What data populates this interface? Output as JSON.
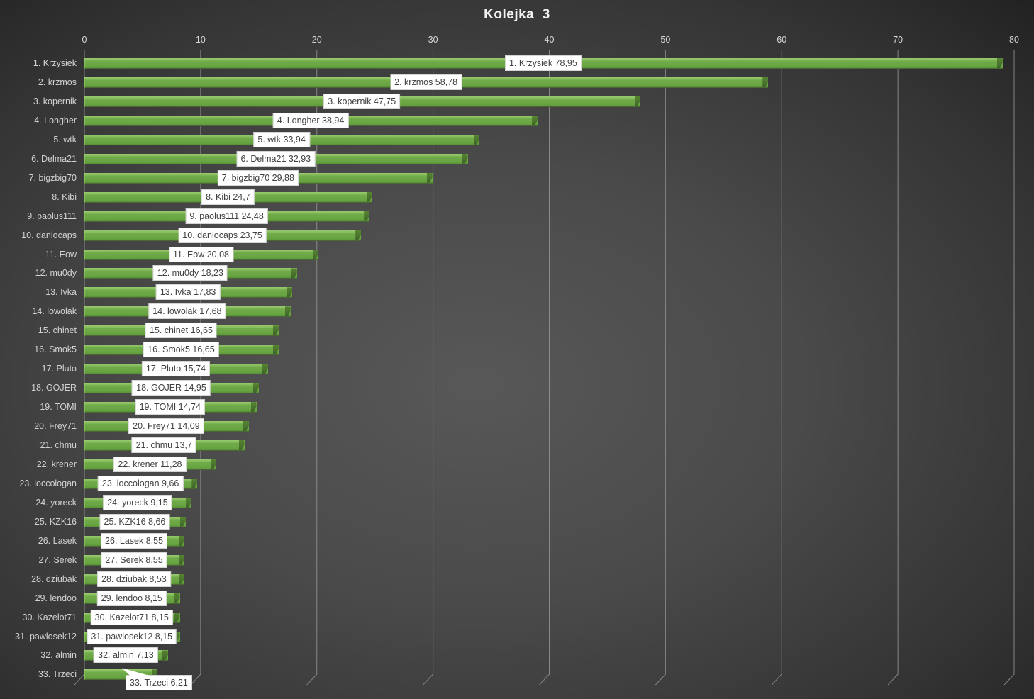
{
  "title": "Kolejka  3",
  "chart_data": {
    "type": "bar",
    "orientation": "horizontal",
    "title": "Kolejka  3",
    "xlabel": "",
    "ylabel": "",
    "xlim": [
      0,
      80
    ],
    "x_ticks": [
      0,
      10,
      20,
      30,
      40,
      50,
      60,
      70,
      80
    ],
    "grid": true,
    "legend": "none",
    "categories": [
      "1. Krzysiek",
      "2. krzmos",
      "3. kopernik",
      "4. Longher",
      "5. wtk",
      "6. Delma21",
      "7. bigzbig70",
      "8. Kibi",
      "9. paolus111",
      "10. daniocaps",
      "11. Eow",
      "12. mu0dy",
      "13. Ivka",
      "14. lowolak",
      "15. chinet",
      "16. Smok5",
      "17. Pluto",
      "18. GOJER",
      "19. TOMI",
      "20. Frey71",
      "21. chmu",
      "22. krener",
      "23. loccologan",
      "24. yoreck",
      "25. KZK16",
      "26. Lasek",
      "27. Serek",
      "28. dziubak",
      "29. lendoo",
      "30. Kazelot71",
      "31. pawlosek12",
      "32. almin",
      "33. Trzeci"
    ],
    "values": [
      78.95,
      58.78,
      47.75,
      38.94,
      33.94,
      32.93,
      29.88,
      24.7,
      24.48,
      23.75,
      20.08,
      18.23,
      17.83,
      17.68,
      16.65,
      16.65,
      15.74,
      14.95,
      14.74,
      14.09,
      13.7,
      11.28,
      9.66,
      9.15,
      8.66,
      8.55,
      8.55,
      8.53,
      8.15,
      8.15,
      8.15,
      7.13,
      6.21
    ],
    "value_labels": [
      "78,95",
      "58,78",
      "47,75",
      "38,94",
      "33,94",
      "32,93",
      "29,88",
      "24,7",
      "24,48",
      "23,75",
      "20,08",
      "18,23",
      "17,83",
      "17,68",
      "16,65",
      "16,65",
      "15,74",
      "14,95",
      "14,74",
      "14,09",
      "13,7",
      "11,28",
      "9,66",
      "9,15",
      "8,66",
      "8,55",
      "8,55",
      "8,53",
      "8,15",
      "8,15",
      "8,15",
      "7,13",
      "6,21"
    ]
  },
  "colors": {
    "bar_fill": "#6ba845",
    "bar_highlight": "#93c56b",
    "bar_side_3d": "#4a742e",
    "background_center": "#565656",
    "background_edge": "#1e1e1e",
    "gridline": "#9a9a9a",
    "axis_text": "#d6d6d6",
    "category_text": "#d2d2d2",
    "title_text": "#f2f2f2",
    "label_box_bg": "#ffffff",
    "label_box_text": "#404040"
  }
}
